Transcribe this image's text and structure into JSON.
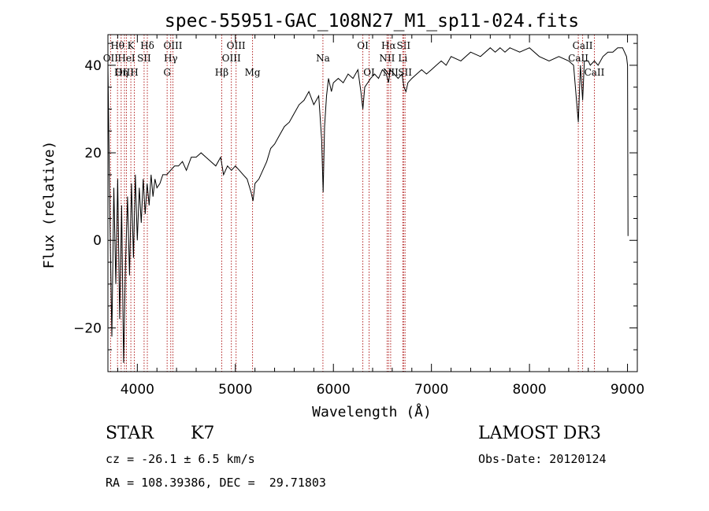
{
  "chart_data": {
    "type": "line",
    "title": "spec-55951-GAC_108N27_M1_sp11-024.fits",
    "xlabel": "Wavelength (Å)",
    "ylabel": "Flux (relative)",
    "xlim": [
      3700,
      9100
    ],
    "ylim": [
      -30,
      47
    ],
    "xticks": [
      4000,
      5000,
      6000,
      7000,
      8000,
      9000
    ],
    "yticks": [
      -20,
      0,
      20,
      40
    ],
    "grid": false,
    "series": [
      {
        "x": [
          3700,
          3720,
          3740,
          3760,
          3780,
          3800,
          3820,
          3840,
          3860,
          3880,
          3900,
          3920,
          3940,
          3960,
          3980,
          4000,
          4020,
          4040,
          4060,
          4080,
          4100,
          4120,
          4140,
          4160,
          4180,
          4200,
          4230,
          4260,
          4300,
          4340,
          4380,
          4420,
          4460,
          4500,
          4550,
          4600,
          4650,
          4700,
          4750,
          4800,
          4850,
          4880,
          4920,
          4960,
          5000,
          5040,
          5080,
          5120,
          5160,
          5180,
          5200,
          5240,
          5280,
          5320,
          5360,
          5400,
          5450,
          5500,
          5550,
          5600,
          5650,
          5700,
          5750,
          5800,
          5850,
          5880,
          5895,
          5910,
          5930,
          5950,
          5980,
          6000,
          6050,
          6100,
          6150,
          6200,
          6250,
          6280,
          6300,
          6320,
          6350,
          6380,
          6420,
          6460,
          6500,
          6540,
          6562,
          6580,
          6620,
          6660,
          6700,
          6720,
          6740,
          6760,
          6800,
          6850,
          6900,
          6950,
          7000,
          7050,
          7100,
          7150,
          7200,
          7300,
          7400,
          7500,
          7600,
          7650,
          7700,
          7750,
          7800,
          7900,
          8000,
          8100,
          8200,
          8300,
          8400,
          8450,
          8498,
          8520,
          8542,
          8560,
          8600,
          8620,
          8662,
          8700,
          8750,
          8800,
          8850,
          8900,
          8950,
          8990,
          9000,
          9005
        ],
        "values": [
          40,
          5,
          -22,
          12,
          -10,
          14,
          -18,
          8,
          -28,
          -5,
          10,
          -8,
          13,
          -4,
          15,
          0,
          12,
          4,
          14,
          6,
          13,
          8,
          15,
          10,
          14,
          12,
          13,
          15,
          15,
          16,
          17,
          17,
          18,
          16,
          19,
          19,
          20,
          19,
          18,
          17,
          19,
          15,
          17,
          16,
          17,
          16,
          15,
          14,
          11,
          9,
          13,
          14,
          16,
          18,
          21,
          22,
          24,
          26,
          27,
          29,
          31,
          32,
          34,
          31,
          33,
          23,
          11,
          26,
          33,
          37,
          34,
          36,
          37,
          36,
          38,
          37,
          39,
          34,
          30,
          35,
          36,
          37,
          38,
          37,
          39,
          38,
          36,
          39,
          38,
          37,
          38,
          35,
          34,
          36,
          37,
          38,
          39,
          38,
          39,
          40,
          41,
          40,
          42,
          41,
          43,
          42,
          44,
          43,
          44,
          43,
          44,
          43,
          44,
          42,
          41,
          42,
          41,
          40,
          27,
          40,
          32,
          41,
          41,
          40,
          41,
          40,
          42,
          43,
          43,
          44,
          44,
          42,
          40,
          1
        ]
      }
    ],
    "line_markers": [
      {
        "label": "Hθ",
        "x": 3798,
        "row": 1
      },
      {
        "label": "OII",
        "x": 3727,
        "row": 2
      },
      {
        "label": "OIII",
        "x": 3869,
        "row": 3
      },
      {
        "label": "K",
        "x": 3934,
        "row": 1
      },
      {
        "label": "H",
        "x": 3969,
        "row": 3
      },
      {
        "label": "HeI",
        "x": 3889,
        "row": 2
      },
      {
        "label": "Hη",
        "x": 3835,
        "row": 3
      },
      {
        "label": "SII",
        "x": 4069,
        "row": 2
      },
      {
        "label": "Hδ",
        "x": 4102,
        "row": 1
      },
      {
        "label": "OIII",
        "x": 4363,
        "row": 1
      },
      {
        "label": "Hγ",
        "x": 4341,
        "row": 2
      },
      {
        "label": "G",
        "x": 4304,
        "row": 3
      },
      {
        "label": "Hβ",
        "x": 4861,
        "row": 3
      },
      {
        "label": "OIII",
        "x": 5007,
        "row": 1
      },
      {
        "label": "OIII",
        "x": 4959,
        "row": 2
      },
      {
        "label": "Mg",
        "x": 5175,
        "row": 3
      },
      {
        "label": "Na",
        "x": 5893,
        "row": 2
      },
      {
        "label": "OI",
        "x": 6300,
        "row": 1
      },
      {
        "label": "OI",
        "x": 6364,
        "row": 3
      },
      {
        "label": "Hα",
        "x": 6563,
        "row": 1
      },
      {
        "label": "NII",
        "x": 6548,
        "row": 2
      },
      {
        "label": "NII",
        "x": 6584,
        "row": 3
      },
      {
        "label": "SII",
        "x": 6716,
        "row": 1
      },
      {
        "label": "Li",
        "x": 6708,
        "row": 2
      },
      {
        "label": "SII",
        "x": 6731,
        "row": 3
      },
      {
        "label": "CaII",
        "x": 8542,
        "row": 1
      },
      {
        "label": "CaII",
        "x": 8498,
        "row": 2
      },
      {
        "label": "CaII",
        "x": 8662,
        "row": 3
      }
    ],
    "colors": {
      "spectrum": "#000000",
      "markers": "#b22222",
      "axes": "#000000"
    }
  },
  "info": {
    "object_class": "STAR",
    "subclass": "K7",
    "survey": "LAMOST DR3",
    "cz": "cz = -26.1 ± 6.5 km/s",
    "obs_date": "Obs-Date: 20120124",
    "coords": "RA = 108.39386, DEC =  29.71803"
  }
}
